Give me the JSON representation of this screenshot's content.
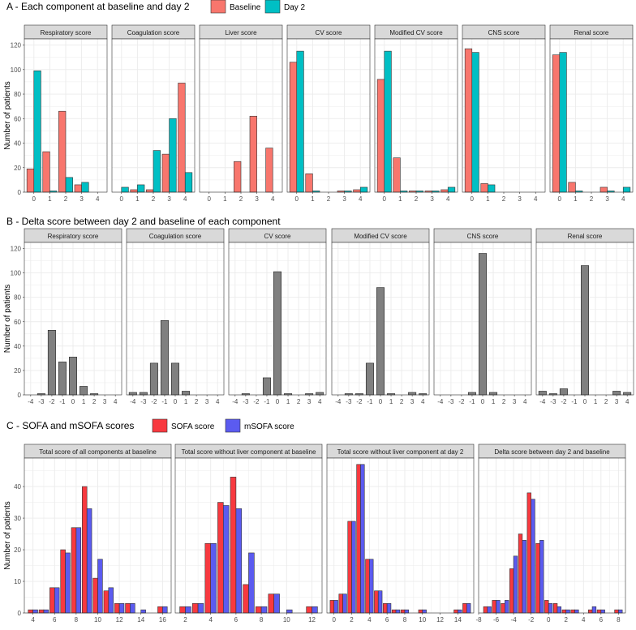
{
  "panel_titles": {
    "A": "A - Each component at baseline and day 2",
    "B": "B - Delta score between day 2 and baseline of each component",
    "C": "C - SOFA and mSOFA scores"
  },
  "ylabel": "Number of patients",
  "colors": {
    "baseline": "#F8766D",
    "day2": "#00BFC4",
    "delta": "#808080",
    "sofa": "#F8393F",
    "msofa": "#5B5BF0",
    "strip": "#D9D9D9",
    "grid": "#EBEBEB"
  },
  "chart_data": [
    {
      "type": "bar",
      "id": "A",
      "legend": [
        "Baseline",
        "Day 2"
      ],
      "legend_position": "top",
      "grid": true,
      "x": [
        0,
        1,
        2,
        3,
        4
      ],
      "ylim": [
        0,
        125
      ],
      "yticks": [
        0,
        20,
        40,
        60,
        80,
        100,
        120
      ],
      "facets": [
        {
          "title": "Respiratory score",
          "series": [
            {
              "name": "Baseline",
              "values": [
                19,
                33,
                66,
                6,
                0
              ]
            },
            {
              "name": "Day 2",
              "values": [
                99,
                1,
                12,
                8,
                0
              ]
            }
          ]
        },
        {
          "title": "Coagulation score",
          "series": [
            {
              "name": "Baseline",
              "values": [
                0,
                2,
                2,
                31,
                89
              ]
            },
            {
              "name": "Day 2",
              "values": [
                4,
                6,
                34,
                60,
                16
              ]
            }
          ]
        },
        {
          "title": "Liver score",
          "series": [
            {
              "name": "Baseline",
              "values": [
                0,
                0,
                25,
                62,
                36
              ]
            },
            {
              "name": "Day 2",
              "values": [
                0,
                0,
                0,
                0,
                0
              ]
            }
          ]
        },
        {
          "title": "CV score",
          "series": [
            {
              "name": "Baseline",
              "values": [
                106,
                15,
                0,
                1,
                2
              ]
            },
            {
              "name": "Day 2",
              "values": [
                115,
                1,
                0,
                1,
                4
              ]
            }
          ]
        },
        {
          "title": "Modified CV score",
          "series": [
            {
              "name": "Baseline",
              "values": [
                92,
                28,
                1,
                1,
                2
              ]
            },
            {
              "name": "Day 2",
              "values": [
                115,
                1,
                1,
                1,
                4
              ]
            }
          ]
        },
        {
          "title": "CNS score",
          "series": [
            {
              "name": "Baseline",
              "values": [
                117,
                7,
                0,
                0,
                0
              ]
            },
            {
              "name": "Day 2",
              "values": [
                114,
                6,
                0,
                0,
                0
              ]
            }
          ]
        },
        {
          "title": "Renal score",
          "series": [
            {
              "name": "Baseline",
              "values": [
                112,
                8,
                0,
                4,
                0
              ]
            },
            {
              "name": "Day 2",
              "values": [
                114,
                1,
                0,
                1,
                4
              ]
            }
          ]
        }
      ]
    },
    {
      "type": "bar",
      "id": "B",
      "grid": true,
      "x": [
        -4,
        -3,
        -2,
        -1,
        0,
        1,
        2,
        3,
        4
      ],
      "ylim": [
        0,
        125
      ],
      "yticks": [
        0,
        20,
        40,
        60,
        80,
        100,
        120
      ],
      "facets": [
        {
          "title": "Respiratory score",
          "values": [
            0,
            1,
            53,
            27,
            31,
            7,
            1,
            0,
            0
          ]
        },
        {
          "title": "Coagulation score",
          "values": [
            2,
            2,
            26,
            61,
            26,
            3,
            0,
            0,
            0
          ]
        },
        {
          "title": "CV score",
          "values": [
            0,
            1,
            0,
            14,
            101,
            1,
            0,
            1,
            2
          ]
        },
        {
          "title": "Modified CV score",
          "values": [
            0,
            1,
            1,
            26,
            88,
            1,
            0,
            2,
            1
          ]
        },
        {
          "title": "CNS score",
          "values": [
            0,
            0,
            0,
            2,
            116,
            2,
            0,
            0,
            0
          ]
        },
        {
          "title": "Renal score",
          "values": [
            3,
            1,
            5,
            0,
            106,
            0,
            0,
            3,
            2
          ]
        }
      ]
    },
    {
      "type": "bar",
      "id": "C",
      "legend": [
        "SOFA score",
        "mSOFA score"
      ],
      "legend_position": "top",
      "grid": true,
      "ylim": [
        0,
        49
      ],
      "yticks": [
        0,
        10,
        20,
        30,
        40
      ],
      "facets": [
        {
          "title": "Total score of all components at baseline",
          "xlim": [
            3.2,
            16.8
          ],
          "xticks": [
            4,
            6,
            8,
            10,
            12,
            14,
            16
          ],
          "x": [
            4,
            5,
            6,
            7,
            8,
            9,
            10,
            11,
            12,
            13,
            14,
            15,
            16
          ],
          "series": [
            {
              "name": "SOFA score",
              "values": [
                1,
                1,
                8,
                20,
                27,
                40,
                11,
                7,
                3,
                3,
                0,
                0,
                2
              ]
            },
            {
              "name": "mSOFA score",
              "values": [
                1,
                1,
                8,
                19,
                27,
                33,
                17,
                8,
                3,
                3,
                1,
                0,
                2
              ]
            }
          ]
        },
        {
          "title": "Total score without liver component at baseline",
          "xlim": [
            1.2,
            12.8
          ],
          "xticks": [
            2,
            4,
            6,
            8,
            10,
            12
          ],
          "x": [
            2,
            3,
            4,
            5,
            6,
            7,
            8,
            9,
            10,
            11,
            12
          ],
          "series": [
            {
              "name": "SOFA score",
              "values": [
                2,
                3,
                22,
                35,
                43,
                9,
                2,
                6,
                0,
                0,
                2
              ]
            },
            {
              "name": "mSOFA score",
              "values": [
                2,
                3,
                22,
                34,
                33,
                19,
                2,
                6,
                1,
                0,
                2
              ]
            }
          ]
        },
        {
          "title": "Total score without liver component at day 2",
          "xlim": [
            -0.8,
            15.8
          ],
          "xticks": [
            0,
            2,
            4,
            6,
            8,
            10,
            12,
            14
          ],
          "x": [
            0,
            1,
            2,
            3,
            4,
            5,
            6,
            7,
            8,
            9,
            10,
            11,
            12,
            13,
            14,
            15
          ],
          "series": [
            {
              "name": "SOFA score",
              "values": [
                4,
                6,
                29,
                47,
                17,
                7,
                3,
                1,
                1,
                0,
                1,
                0,
                0,
                0,
                1,
                3
              ]
            },
            {
              "name": "mSOFA score",
              "values": [
                4,
                6,
                29,
                47,
                17,
                7,
                3,
                1,
                1,
                0,
                1,
                0,
                0,
                0,
                1,
                3
              ]
            }
          ]
        },
        {
          "title": "Delta score between day 2 and baseline",
          "xlim": [
            -8,
            8.8
          ],
          "xticks": [
            -8,
            -6,
            -4,
            -2,
            0,
            2,
            4,
            6,
            8
          ],
          "x": [
            -7,
            -6,
            -5,
            -4,
            -3,
            -2,
            -1,
            0,
            1,
            2,
            3,
            4,
            5,
            6,
            7,
            8
          ],
          "series": [
            {
              "name": "SOFA score",
              "values": [
                2,
                4,
                3,
                14,
                25,
                38,
                22,
                4,
                3,
                1,
                1,
                0,
                1,
                1,
                0,
                1
              ]
            },
            {
              "name": "mSOFA score",
              "values": [
                2,
                4,
                4,
                18,
                23,
                36,
                23,
                3,
                2,
                1,
                1,
                0,
                2,
                1,
                0,
                1
              ]
            }
          ]
        }
      ]
    }
  ]
}
